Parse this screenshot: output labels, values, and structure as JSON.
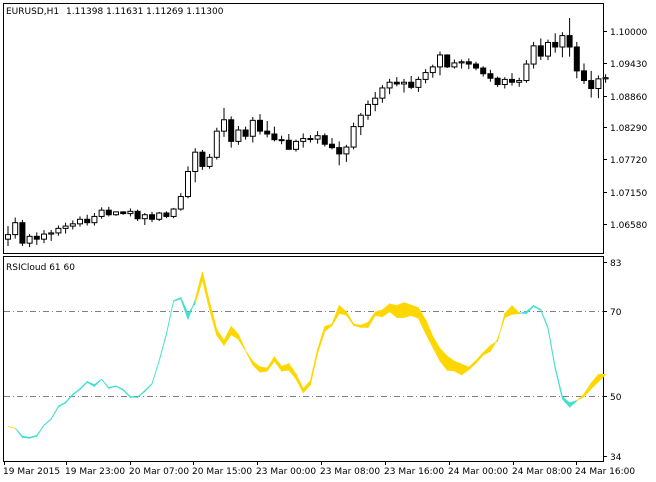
{
  "main_panel": {
    "symbol_label": "EURUSD,H1",
    "ohlc_label": "1.11398 1.11631 1.11269 1.11300",
    "price_levels": [
      "1.10000",
      "1.09430",
      "1.08860",
      "1.08290",
      "1.07720",
      "1.07150",
      "1.06580"
    ]
  },
  "indicator_panel": {
    "label": "RSICloud 61 60",
    "levels": [
      "83",
      "70",
      "50",
      "34"
    ]
  },
  "time_axis": [
    "19 Mar 2015",
    "19 Mar 23:00",
    "20 Mar 07:00",
    "20 Mar 15:00",
    "23 Mar 00:00",
    "23 Mar 08:00",
    "23 Mar 16:00",
    "24 Mar 00:00",
    "24 Mar 08:00",
    "24 Mar 16:00"
  ],
  "colors": {
    "bull_cloud": "#ffd700",
    "bear_cloud": "#40e0d0",
    "frame": "#000000",
    "level_line": "#808080"
  },
  "chart_data": [
    {
      "type": "candlestick",
      "title": "EURUSD,H1",
      "ylim": [
        1.0628,
        1.1029
      ],
      "candles": [
        [
          1.064,
          1.0663,
          1.0628,
          1.0648
        ],
        [
          1.0648,
          1.0678,
          1.0641,
          1.0669
        ],
        [
          1.0669,
          1.0674,
          1.0628,
          1.0633
        ],
        [
          1.0633,
          1.0649,
          1.0626,
          1.0645
        ],
        [
          1.0645,
          1.0652,
          1.063,
          1.064
        ],
        [
          1.064,
          1.0656,
          1.0633,
          1.0649
        ],
        [
          1.0649,
          1.0656,
          1.0637,
          1.0651
        ],
        [
          1.0651,
          1.0664,
          1.0646,
          1.0659
        ],
        [
          1.0659,
          1.0669,
          1.065,
          1.0663
        ],
        [
          1.0663,
          1.0673,
          1.0657,
          1.0667
        ],
        [
          1.0667,
          1.068,
          1.0662,
          1.0675
        ],
        [
          1.0675,
          1.0683,
          1.0664,
          1.0669
        ],
        [
          1.0669,
          1.0686,
          1.0664,
          1.068
        ],
        [
          1.068,
          1.0696,
          1.0676,
          1.0691
        ],
        [
          1.0691,
          1.0697,
          1.068,
          1.0683
        ],
        [
          1.0683,
          1.0689,
          1.0681,
          1.0688
        ],
        [
          1.0688,
          1.0689,
          1.0683,
          1.0685
        ],
        [
          1.0685,
          1.0694,
          1.068,
          1.0689
        ],
        [
          1.0689,
          1.0692,
          1.0672,
          1.0676
        ],
        [
          1.0676,
          1.0686,
          1.0665,
          1.0683
        ],
        [
          1.0683,
          1.0688,
          1.067,
          1.0675
        ],
        [
          1.0675,
          1.0688,
          1.0672,
          1.0686
        ],
        [
          1.0686,
          1.0689,
          1.0677,
          1.068
        ],
        [
          1.068,
          1.0695,
          1.0677,
          1.0693
        ],
        [
          1.0693,
          1.0721,
          1.069,
          1.0715
        ],
        [
          1.0715,
          1.0768,
          1.0712,
          1.0759
        ],
        [
          1.0759,
          1.08,
          1.074,
          1.0793
        ],
        [
          1.0793,
          1.0797,
          1.0762,
          1.0768
        ],
        [
          1.0768,
          1.079,
          1.0764,
          1.0784
        ],
        [
          1.0784,
          1.0836,
          1.078,
          1.083
        ],
        [
          1.083,
          1.0871,
          1.082,
          1.085
        ],
        [
          1.085,
          1.0856,
          1.0801,
          1.0812
        ],
        [
          1.0812,
          1.0839,
          1.0806,
          1.0832
        ],
        [
          1.0832,
          1.0838,
          1.0815,
          1.0821
        ],
        [
          1.0821,
          1.0855,
          1.081,
          1.0849
        ],
        [
          1.0849,
          1.086,
          1.0824,
          1.083
        ],
        [
          1.083,
          1.0848,
          1.0819,
          1.0825
        ],
        [
          1.0825,
          1.0838,
          1.0812,
          1.0815
        ],
        [
          1.0815,
          1.0822,
          1.0807,
          1.0814
        ],
        [
          1.0814,
          1.0825,
          1.08,
          1.0798
        ],
        [
          1.0798,
          1.0815,
          1.0794,
          1.0812
        ],
        [
          1.0812,
          1.0826,
          1.0801,
          1.0817
        ],
        [
          1.0817,
          1.0823,
          1.081,
          1.0816
        ],
        [
          1.0816,
          1.083,
          1.0808,
          1.0822
        ],
        [
          1.0822,
          1.0826,
          1.0803,
          1.0807
        ],
        [
          1.0807,
          1.0818,
          1.0798,
          1.0801
        ],
        [
          1.0801,
          1.0812,
          1.077,
          1.079
        ],
        [
          1.079,
          1.0806,
          1.0776,
          1.0802
        ],
        [
          1.0802,
          1.0845,
          1.0798,
          1.0838
        ],
        [
          1.0838,
          1.0862,
          1.0823,
          1.0858
        ],
        [
          1.0858,
          1.0884,
          1.085,
          1.0877
        ],
        [
          1.0877,
          1.0899,
          1.0865,
          1.0888
        ],
        [
          1.0888,
          1.0911,
          1.088,
          1.0906
        ],
        [
          1.0906,
          1.0922,
          1.0895,
          1.0916
        ],
        [
          1.0916,
          1.0925,
          1.0909,
          1.0913
        ],
        [
          1.0913,
          1.0922,
          1.0898,
          1.0916
        ],
        [
          1.0916,
          1.0927,
          1.0904,
          1.0907
        ],
        [
          1.0907,
          1.0926,
          1.0899,
          1.0921
        ],
        [
          1.0921,
          1.0939,
          1.0914,
          1.0933
        ],
        [
          1.0933,
          1.0947,
          1.0924,
          1.0943
        ],
        [
          1.0943,
          1.097,
          1.0928,
          1.0964
        ],
        [
          1.0964,
          1.0965,
          1.0941,
          1.0943
        ],
        [
          1.0943,
          1.0956,
          1.094,
          1.095
        ],
        [
          1.095,
          1.0956,
          1.094,
          1.0952
        ],
        [
          1.0952,
          1.0958,
          1.0939,
          1.0948
        ],
        [
          1.0948,
          1.0952,
          1.0937,
          1.0941
        ],
        [
          1.0941,
          1.0944,
          1.0926,
          1.0931
        ],
        [
          1.0931,
          1.0938,
          1.0917,
          1.0923
        ],
        [
          1.0923,
          1.0926,
          1.0908,
          1.0912
        ],
        [
          1.0912,
          1.0925,
          1.0905,
          1.0921
        ],
        [
          1.0921,
          1.0932,
          1.091,
          1.0916
        ],
        [
          1.0916,
          1.0924,
          1.0908,
          1.0919
        ],
        [
          1.0919,
          1.0955,
          1.0915,
          1.0948
        ],
        [
          1.0948,
          1.0987,
          1.094,
          1.098
        ],
        [
          1.098,
          1.0993,
          1.0955,
          1.0962
        ],
        [
          1.0962,
          1.0991,
          1.0955,
          1.0986
        ],
        [
          1.0986,
          1.1002,
          1.0968,
          1.0978
        ],
        [
          1.0978,
          1.1004,
          1.096,
          1.0998
        ],
        [
          1.0998,
          1.1029,
          1.0961,
          1.0978
        ],
        [
          1.0978,
          1.0987,
          1.0923,
          1.0936
        ],
        [
          1.0936,
          1.0949,
          1.0913,
          1.0919
        ],
        [
          1.0919,
          1.0936,
          1.0889,
          1.0905
        ],
        [
          1.0905,
          1.0928,
          1.0888,
          1.0922
        ],
        [
          1.0922,
          1.093,
          1.0915,
          1.0924
        ]
      ]
    },
    {
      "type": "area",
      "title": "RSICloud 61 60",
      "ylim": [
        34,
        83
      ],
      "levels": [
        70,
        50
      ],
      "x": [
        0,
        1,
        2,
        3,
        4,
        5,
        6,
        7,
        8,
        9,
        10,
        11,
        12,
        13,
        14,
        15,
        16,
        17,
        18,
        19,
        20,
        21,
        22,
        23,
        24,
        25,
        26,
        27,
        28,
        29,
        30,
        31,
        32,
        33,
        34,
        35,
        36,
        37,
        38,
        39,
        40,
        41,
        42,
        43,
        44,
        45,
        46,
        47,
        48,
        49,
        50,
        51,
        52,
        53,
        54,
        55,
        56,
        57,
        58,
        59,
        60,
        61,
        62,
        63,
        64,
        65,
        66,
        67,
        68,
        69,
        70,
        71,
        72,
        73,
        74,
        75,
        76,
        77,
        78,
        79,
        80,
        81,
        82,
        83
      ],
      "series": [
        {
          "values": [
            41.5,
            41.0,
            38.7,
            38.5,
            39.0,
            41.7,
            43.3,
            46.4,
            47.4,
            49.4,
            50.8,
            52.6,
            51.6,
            53.4,
            51.1,
            51.6,
            50.6,
            48.8,
            48.8,
            50.3,
            52.2,
            58.0,
            64.7,
            73.1,
            73.7,
            68.5,
            73.5,
            80.5,
            72.8,
            65.9,
            63.2,
            66.7,
            64.7,
            60.6,
            57.9,
            56.5,
            56.2,
            59.0,
            56.6,
            57.3,
            54.7,
            51.0,
            53.0,
            60.9,
            66.7,
            67.3,
            72.0,
            70.4,
            67.3,
            67.0,
            67.7,
            70.3,
            70.9,
            72.4,
            72.0,
            72.7,
            72.1,
            71.4,
            68.4,
            64.2,
            61.1,
            59.2,
            57.9,
            57.2,
            56.4,
            58.1,
            60.1,
            61.9,
            63.0,
            70.0,
            71.9,
            70.1,
            70.0,
            71.8,
            70.8,
            66.2,
            56.0,
            48.4,
            46.4,
            47.9,
            49.6,
            52.4,
            54.6,
            54.6
          ]
        },
        {
          "values": [
            41.5,
            41.0,
            39.0,
            38.7,
            39.2,
            41.8,
            43.4,
            46.6,
            47.6,
            49.6,
            51.0,
            52.8,
            52.0,
            53.4,
            51.3,
            51.7,
            50.8,
            49.0,
            48.9,
            50.5,
            52.3,
            58.1,
            64.9,
            73.2,
            74.0,
            70.0,
            72.5,
            78.5,
            71.0,
            64.5,
            62.0,
            64.7,
            63.5,
            60.6,
            57.0,
            55.2,
            55.5,
            58.0,
            55.5,
            55.7,
            53.5,
            50.0,
            52.0,
            60.0,
            65.5,
            67.0,
            70.0,
            69.6,
            67.0,
            66.5,
            66.5,
            69.5,
            69.2,
            70.5,
            69.0,
            69.0,
            69.5,
            68.8,
            65.0,
            61.5,
            58.0,
            55.7,
            55.5,
            54.5,
            55.8,
            57.5,
            59.5,
            60.5,
            63.5,
            69.0,
            69.8,
            70.0,
            70.5,
            72.0,
            71.0,
            66.5,
            56.5,
            49.0,
            47.4,
            48.0,
            49.0,
            51.0,
            52.8,
            54.6
          ]
        }
      ]
    }
  ]
}
